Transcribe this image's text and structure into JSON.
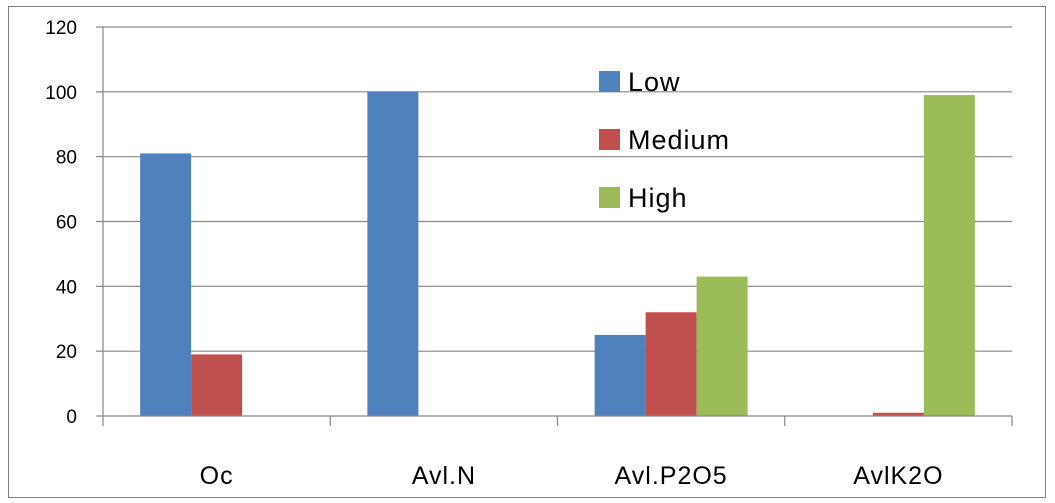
{
  "chart_data": {
    "type": "bar",
    "title": "",
    "xlabel": "",
    "ylabel": "",
    "categories": [
      "Oc",
      "Avl.N",
      "Avl.P2O5",
      "AvlK2O"
    ],
    "series": [
      {
        "name": "Low",
        "color": "#4F81BD",
        "values": [
          81,
          100,
          25,
          0
        ]
      },
      {
        "name": "Medium",
        "color": "#C0504D",
        "values": [
          19,
          0,
          32,
          1
        ]
      },
      {
        "name": "High",
        "color": "#9BBB59",
        "values": [
          0,
          0,
          43,
          99
        ]
      }
    ],
    "ylim": [
      0,
      120
    ],
    "yticks": [
      0,
      20,
      40,
      60,
      80,
      100,
      120
    ],
    "grid": true,
    "legend_position": "top-right"
  }
}
